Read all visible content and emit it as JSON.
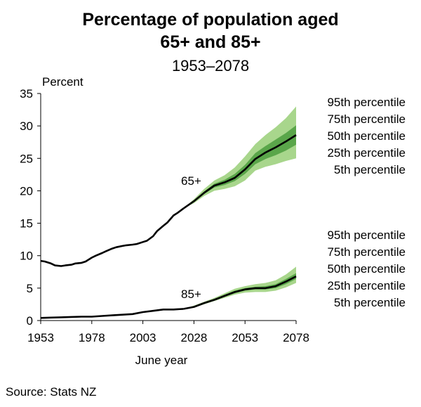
{
  "chart_data": {
    "type": "area",
    "title_line1": "Percentage of population aged",
    "title_line2": "65+ and 85+",
    "subtitle": "1953–2078",
    "ylabel": "Percent",
    "xlabel": "June year",
    "source": "Source: Stats NZ",
    "xlim": [
      1953,
      2078
    ],
    "ylim": [
      0,
      35
    ],
    "x_ticks": [
      1953,
      1978,
      2003,
      2028,
      2053,
      2078
    ],
    "y_ticks": [
      0,
      5,
      10,
      15,
      20,
      25,
      30,
      35
    ],
    "grid": false,
    "band_colors": {
      "outer": "#a8d68c",
      "inner": "#5aa64a",
      "median": "#000000"
    },
    "series": [
      {
        "name": "65+",
        "history": {
          "x": [
            1953,
            1955,
            1958,
            1960,
            1963,
            1965,
            1968,
            1970,
            1973,
            1975,
            1978,
            1980,
            1983,
            1985,
            1988,
            1990,
            1993,
            1995,
            1998,
            2000,
            2003,
            2005,
            2008,
            2010,
            2013,
            2015,
            2018,
            2020,
            2023
          ],
          "y": [
            9.2,
            9.1,
            8.8,
            8.5,
            8.4,
            8.5,
            8.6,
            8.8,
            8.9,
            9.1,
            9.7,
            10.0,
            10.4,
            10.7,
            11.1,
            11.3,
            11.5,
            11.6,
            11.7,
            11.8,
            12.1,
            12.3,
            13.0,
            13.8,
            14.6,
            15.1,
            16.2,
            16.6,
            17.3
          ]
        },
        "projection": {
          "x": [
            2023,
            2028,
            2033,
            2038,
            2043,
            2048,
            2053,
            2058,
            2063,
            2068,
            2073,
            2078
          ],
          "median": [
            17.3,
            18.4,
            19.7,
            20.8,
            21.3,
            22.0,
            23.3,
            24.9,
            25.9,
            26.7,
            27.6,
            28.6
          ],
          "p25": [
            17.3,
            18.3,
            19.5,
            20.5,
            20.9,
            21.5,
            22.6,
            24.1,
            24.9,
            25.5,
            26.2,
            27.1
          ],
          "p75": [
            17.3,
            18.5,
            19.9,
            21.1,
            21.7,
            22.6,
            24.0,
            25.8,
            26.9,
            27.9,
            28.9,
            30.1
          ],
          "p5": [
            17.3,
            18.1,
            19.2,
            20.0,
            20.3,
            20.7,
            21.6,
            23.1,
            23.7,
            24.1,
            24.6,
            25.0
          ],
          "p95": [
            17.3,
            18.7,
            20.3,
            21.6,
            22.4,
            23.6,
            25.3,
            27.2,
            28.6,
            29.8,
            31.2,
            33.0
          ]
        },
        "percentile_labels": [
          "95th percentile",
          "75th percentile",
          "50th percentile",
          "25th percentile",
          "5th percentile"
        ]
      },
      {
        "name": "85+",
        "history": {
          "x": [
            1953,
            1958,
            1963,
            1968,
            1973,
            1978,
            1983,
            1988,
            1993,
            1998,
            2003,
            2008,
            2013,
            2018,
            2023
          ],
          "y": [
            0.4,
            0.45,
            0.5,
            0.55,
            0.6,
            0.6,
            0.7,
            0.8,
            0.9,
            1.0,
            1.3,
            1.5,
            1.7,
            1.7,
            1.8
          ]
        },
        "projection": {
          "x": [
            2023,
            2028,
            2033,
            2038,
            2043,
            2048,
            2053,
            2058,
            2063,
            2068,
            2073,
            2078
          ],
          "median": [
            1.8,
            2.1,
            2.7,
            3.2,
            3.8,
            4.4,
            4.8,
            5.0,
            5.0,
            5.3,
            6.0,
            6.8
          ],
          "p25": [
            1.8,
            2.1,
            2.6,
            3.1,
            3.7,
            4.2,
            4.6,
            4.8,
            4.8,
            5.0,
            5.6,
            6.4
          ],
          "p75": [
            1.8,
            2.2,
            2.8,
            3.3,
            4.0,
            4.6,
            5.0,
            5.2,
            5.3,
            5.6,
            6.4,
            7.3
          ],
          "p5": [
            1.8,
            2.0,
            2.5,
            3.0,
            3.5,
            4.0,
            4.3,
            4.4,
            4.4,
            4.6,
            5.1,
            5.8
          ],
          "p95": [
            1.8,
            2.3,
            2.9,
            3.5,
            4.2,
            4.9,
            5.3,
            5.6,
            5.8,
            6.2,
            7.1,
            8.3
          ]
        },
        "percentile_labels": [
          "95th percentile",
          "75th percentile",
          "50th percentile",
          "25th percentile",
          "5th percentile"
        ]
      }
    ]
  }
}
